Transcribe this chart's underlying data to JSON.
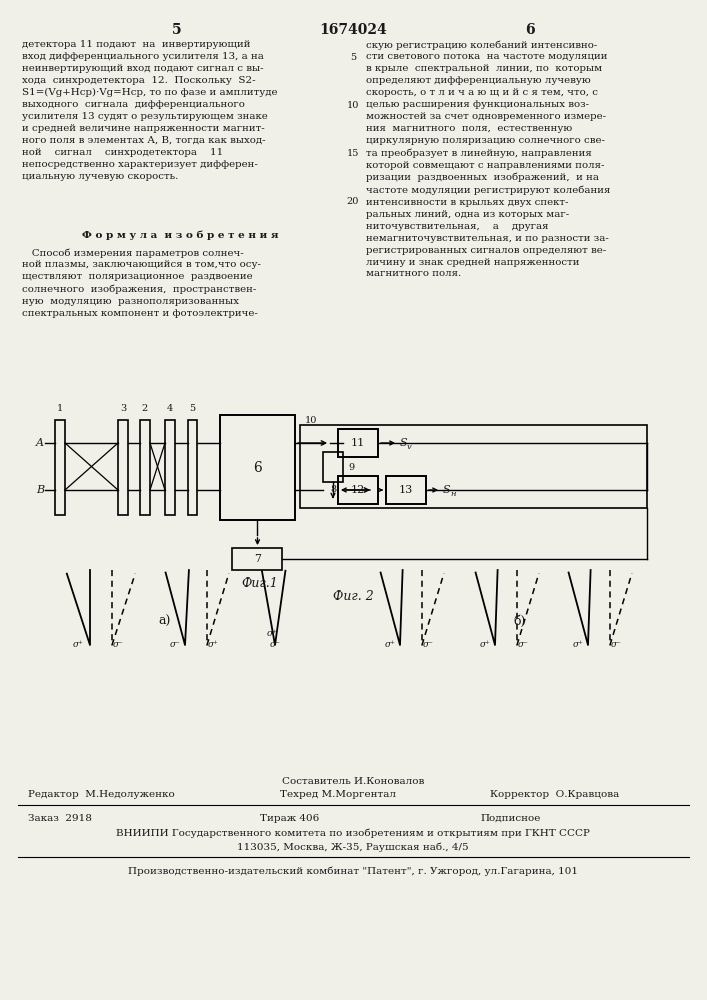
{
  "bg_color": "#f0efe8",
  "text_color": "#1a1a1a",
  "page_num_left": "5",
  "page_title": "1674024",
  "page_num_right": "6",
  "left_col_text1": "детектора 11 подают  на  инвертирующий\nвход дифференциального усилителя 13, а на\nнеинвертирующий вход подают сигнал с вы-\nхода  синхродетектора  12.  Поскольку  S2-\nS1=(Vg+Hcp)·Vg=Hcp, то по фазе и амплитуде\nвыходного  сигнала  дифференциального\nусилителя 13 судят о результирующем знаке\nи средней величине напряженности магнит-\nного поля в элементах А, В, тогда как выход-\nной    сигнал    синхродетектора    11\nнепосредственно характеризует дифферен-\nциальную лучевую скорость.",
  "formula_header": "Ф о р м у л а  и з о б р е т е н и я",
  "formula_body": "   Способ измерения параметров солнеч-\nной плазмы, заключающийся в том,что осу-\nществляют  поляризационное  раздвоение\nсолнечного  изображения,  пространствен-\nную  модуляцию  разнополяризованных\nспектральных компонент и фотоэлектриче-",
  "right_col_text": "скую регистрацию колебаний интенсивно-\nсти светового потока  на частоте модуляции\nв крыле  спектральной  линии, по  которым\nопределяют дифференциальную лучевую\nскорость, о т л и ч а ю щ и й с я тем, что, с\nцелью расширения функциональных воз-\nможностей за счет одновременного измере-\nния  магнитного  поля,  естественную\nциркулярную поляризацию солнечного све-\nта преобразует в линейную, направления\nкоторой совмещают с направлениями поля-\nризации  раздвоенных  изображений,  и на\nчастоте модуляции регистрируют колебания\nинтенсивности в крыльях двух спект-\nральных линий, одна из которых маг-\nниточувствительная,    а    другая\nнемагниточувствительная, и по разности за-\nрегистрированных сигналов определяют ве-\nличину и знак средней напряженности\nмагнитного поля.",
  "line_numbers": [
    [
      "5",
      943
    ],
    [
      "10",
      895
    ],
    [
      "15",
      847
    ],
    [
      "20",
      798
    ]
  ],
  "fig1_label": "Фиг.1",
  "fig2_label": "Фиг. 2",
  "label_a": "а)",
  "label_b": "б)",
  "footer_sestavitel": "Составитель И.Коновалов",
  "footer_redaktor": "Редактор  М.Недолуженко",
  "footer_tehred": "Техред М.Моргентал",
  "footer_korrektor": "Корректор  О.Кравцова",
  "footer_zakaz": "Заказ  2918",
  "footer_tirazh": "Тираж 406",
  "footer_podpisnoe": "Подписное",
  "footer_vniipи": "ВНИИПИ Государственного комитета по изобретениям и открытиям при ГКНТ СССР",
  "footer_address": "113035, Москва, Ж-35, Раушская наб., 4/5",
  "footer_producer": "Производственно-издательский комбинат \"Патент\", г. Ужгород, ул.Гагарина, 101"
}
